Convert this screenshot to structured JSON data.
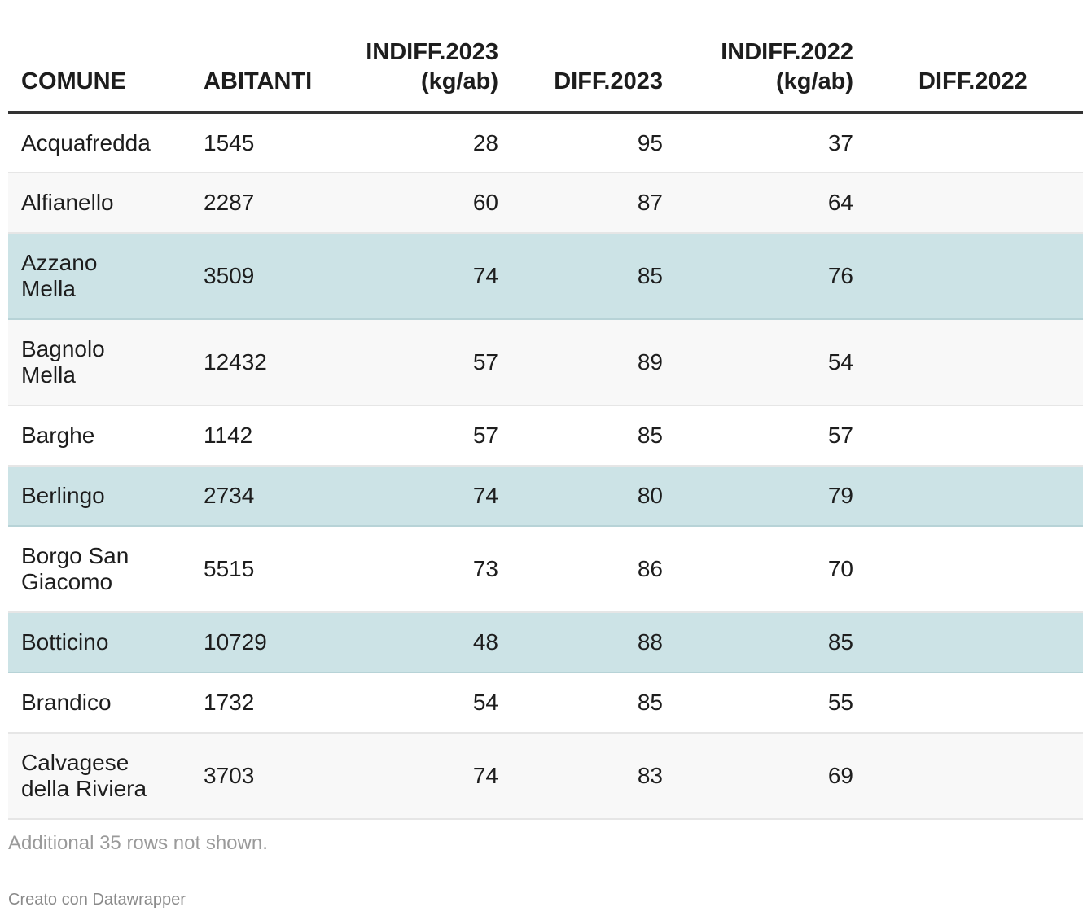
{
  "chart_data": {
    "type": "table",
    "columns": [
      "COMUNE",
      "ABITANTI",
      "INDIFF.2023 (kg/ab)",
      "DIFF.2023",
      "INDIFF.2022 (kg/ab)",
      "DIFF.2022"
    ],
    "header": {
      "comune": "COMUNE",
      "abitanti": "ABITANTI",
      "indiff2023_l1": "INDIFF.2023",
      "indiff2023_l2": "(kg/ab)",
      "diff2023": "DIFF.2023",
      "indiff2022_l1": "INDIFF.2022",
      "indiff2022_l2": "(kg/ab)",
      "diff2022": "DIFF.2022"
    },
    "rows": [
      {
        "comune_l1": "Acquafredda",
        "comune_l2": "",
        "abitanti": "1545",
        "indiff2023": "28",
        "diff2023": "95",
        "indiff2022": "37",
        "highlight": false
      },
      {
        "comune_l1": "Alfianello",
        "comune_l2": "",
        "abitanti": "2287",
        "indiff2023": "60",
        "diff2023": "87",
        "indiff2022": "64",
        "highlight": false
      },
      {
        "comune_l1": "Azzano",
        "comune_l2": "Mella",
        "abitanti": "3509",
        "indiff2023": "74",
        "diff2023": "85",
        "indiff2022": "76",
        "highlight": true
      },
      {
        "comune_l1": "Bagnolo",
        "comune_l2": "Mella",
        "abitanti": "12432",
        "indiff2023": "57",
        "diff2023": "89",
        "indiff2022": "54",
        "highlight": false
      },
      {
        "comune_l1": "Barghe",
        "comune_l2": "",
        "abitanti": "1142",
        "indiff2023": "57",
        "diff2023": "85",
        "indiff2022": "57",
        "highlight": false
      },
      {
        "comune_l1": "Berlingo",
        "comune_l2": "",
        "abitanti": "2734",
        "indiff2023": "74",
        "diff2023": "80",
        "indiff2022": "79",
        "highlight": true
      },
      {
        "comune_l1": "Borgo San",
        "comune_l2": "Giacomo",
        "abitanti": "5515",
        "indiff2023": "73",
        "diff2023": "86",
        "indiff2022": "70",
        "highlight": false
      },
      {
        "comune_l1": "Botticino",
        "comune_l2": "",
        "abitanti": "10729",
        "indiff2023": "48",
        "diff2023": "88",
        "indiff2022": "85",
        "highlight": true
      },
      {
        "comune_l1": "Brandico",
        "comune_l2": "",
        "abitanti": "1732",
        "indiff2023": "54",
        "diff2023": "85",
        "indiff2022": "55",
        "highlight": false
      },
      {
        "comune_l1": "Calvagese",
        "comune_l2": "della Riviera",
        "abitanti": "3703",
        "indiff2023": "74",
        "diff2023": "83",
        "indiff2022": "69",
        "highlight": false
      }
    ],
    "highlight_color": "#cce3e6"
  },
  "notes": "Additional 35 rows not shown.",
  "credit": "Creato con Datawrapper"
}
